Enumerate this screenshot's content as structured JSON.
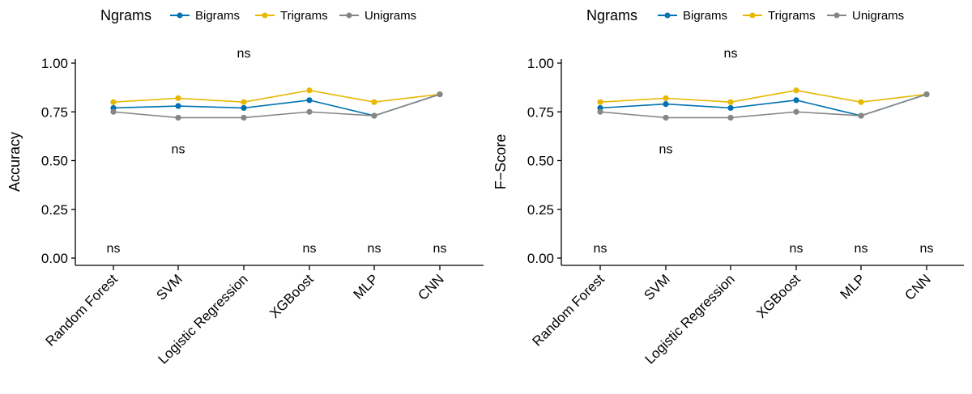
{
  "chart_data": [
    {
      "type": "line",
      "legend": {
        "title": "Ngrams",
        "entries": [
          "Bigrams",
          "Trigrams",
          "Unigrams"
        ],
        "placement": "top"
      },
      "categories": [
        "Random Forest",
        "SVM",
        "Logistic Regression",
        "XGBoost",
        "MLP",
        "CNN"
      ],
      "ylabel": "Accuracy",
      "xlabel": "",
      "ylim": [
        0,
        1.05
      ],
      "yticks": [
        "0.00",
        "0.25",
        "0.50",
        "0.75",
        "1.00"
      ],
      "series": [
        {
          "name": "Bigrams",
          "color": "#0072B2",
          "values": [
            0.77,
            0.78,
            0.77,
            0.81,
            0.73,
            0.84
          ]
        },
        {
          "name": "Trigrams",
          "color": "#E7B800",
          "values": [
            0.8,
            0.82,
            0.8,
            0.86,
            0.8,
            0.84
          ]
        },
        {
          "name": "Unigrams",
          "color": "#868686",
          "values": [
            0.75,
            0.72,
            0.72,
            0.75,
            0.73,
            0.84
          ]
        }
      ],
      "annotations": [
        {
          "text": "ns",
          "category": "Random Forest",
          "y": 0.02
        },
        {
          "text": "ns",
          "category": "SVM",
          "y": 0.53
        },
        {
          "text": "ns",
          "category": "Logistic Regression",
          "y": 1.02
        },
        {
          "text": "ns",
          "category": "XGBoost",
          "y": 0.02
        },
        {
          "text": "ns",
          "category": "MLP",
          "y": 0.02
        },
        {
          "text": "ns",
          "category": "CNN",
          "y": 0.02
        }
      ],
      "grid": false
    },
    {
      "type": "line",
      "legend": {
        "title": "Ngrams",
        "entries": [
          "Bigrams",
          "Trigrams",
          "Unigrams"
        ],
        "placement": "top"
      },
      "categories": [
        "Random Forest",
        "SVM",
        "Logistic Regression",
        "XGBoost",
        "MLP",
        "CNN"
      ],
      "ylabel": "F−Score",
      "xlabel": "",
      "ylim": [
        0,
        1.05
      ],
      "yticks": [
        "0.00",
        "0.25",
        "0.50",
        "0.75",
        "1.00"
      ],
      "series": [
        {
          "name": "Bigrams",
          "color": "#0072B2",
          "values": [
            0.77,
            0.79,
            0.77,
            0.81,
            0.73,
            0.84
          ]
        },
        {
          "name": "Trigrams",
          "color": "#E7B800",
          "values": [
            0.8,
            0.82,
            0.8,
            0.86,
            0.8,
            0.84
          ]
        },
        {
          "name": "Unigrams",
          "color": "#868686",
          "values": [
            0.75,
            0.72,
            0.72,
            0.75,
            0.73,
            0.84
          ]
        }
      ],
      "annotations": [
        {
          "text": "ns",
          "category": "Random Forest",
          "y": 0.02
        },
        {
          "text": "ns",
          "category": "SVM",
          "y": 0.53
        },
        {
          "text": "ns",
          "category": "Logistic Regression",
          "y": 1.02
        },
        {
          "text": "ns",
          "category": "XGBoost",
          "y": 0.02
        },
        {
          "text": "ns",
          "category": "MLP",
          "y": 0.02
        },
        {
          "text": "ns",
          "category": "CNN",
          "y": 0.02
        }
      ],
      "grid": false
    }
  ]
}
